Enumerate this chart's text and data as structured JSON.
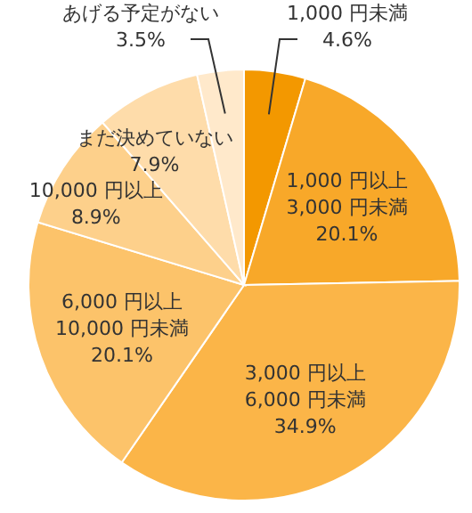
{
  "chart_data": {
    "type": "pie",
    "categories": [
      "1,000 円未満",
      "1,000 円以上\n3,000 円未満",
      "3,000 円以上\n6,000 円未満",
      "6,000 円以上\n10,000 円未満",
      "10,000 円以上",
      "まだ決めていない",
      "あげる予定がない"
    ],
    "values": [
      4.6,
      20.1,
      34.9,
      20.1,
      8.9,
      7.9,
      3.5
    ],
    "value_labels": [
      "4.6%",
      "20.1%",
      "34.9%",
      "20.1%",
      "8.9%",
      "7.9%",
      "3.5%"
    ],
    "colors": [
      "#f39800",
      "#f8a829",
      "#fbb548",
      "#fcc36a",
      "#fdd08b",
      "#fedcaa",
      "#ffe9cb"
    ]
  }
}
